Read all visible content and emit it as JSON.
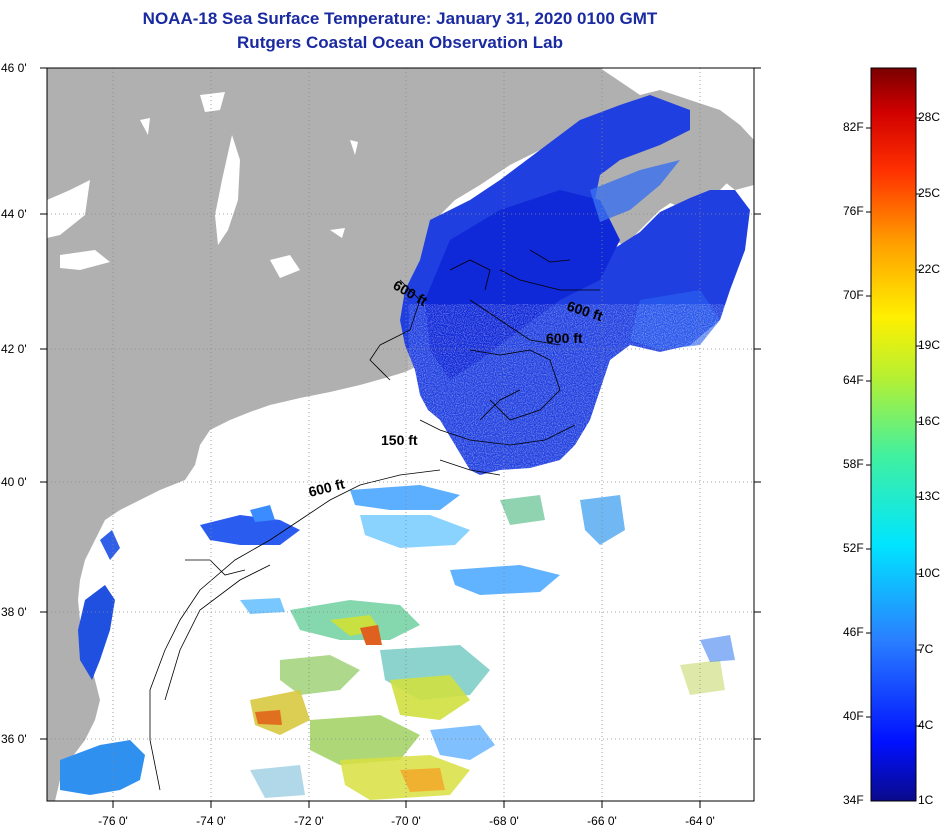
{
  "title": "NOAA-18 Sea Surface Temperature:  January 31, 2020 0100 GMT",
  "subtitle": "Rutgers Coastal Ocean Observation Lab",
  "lat_labels": [
    "46 0'",
    "44 0'",
    "42 0'",
    "40 0'",
    "38 0'",
    "36 0'"
  ],
  "lon_labels": [
    "-76 0'",
    "-74 0'",
    "-72 0'",
    "-70 0'",
    "-68 0'",
    "-66 0'",
    "-64 0'"
  ],
  "contour_labels": [
    "600 ft",
    "600 ft",
    "600 ft",
    "150 ft",
    "600 ft"
  ],
  "colorbar": {
    "fahrenheit": [
      "82F",
      "76F",
      "70F",
      "64F",
      "58F",
      "52F",
      "46F",
      "40F",
      "34F"
    ],
    "celsius": [
      "28C",
      "25C",
      "22C",
      "19C",
      "16C",
      "13C",
      "10C",
      "7C",
      "4C",
      "1C"
    ]
  },
  "colors": {
    "land": "#b0b0b0",
    "ocean_nodata": "#ffffff",
    "cold_water": "#1f3fe0",
    "title": "#1a2aa0"
  }
}
